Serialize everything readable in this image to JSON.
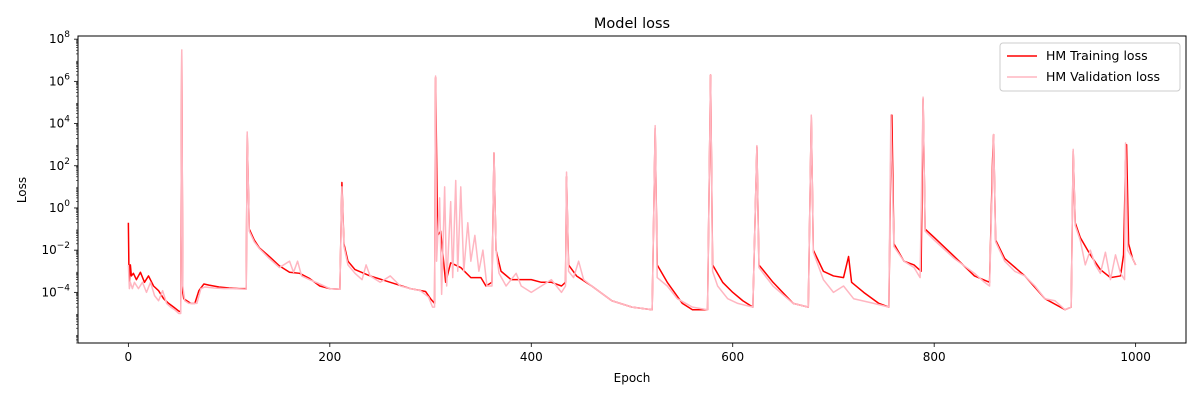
{
  "chart_data": {
    "type": "line",
    "title": "Model loss",
    "xlabel": "Epoch",
    "ylabel": "Loss",
    "xlim": [
      -50,
      1050
    ],
    "ylim_log10": [
      -6.4,
      8.15
    ],
    "yscale": "log",
    "x_ticks": [
      0,
      200,
      400,
      600,
      800,
      1000
    ],
    "y_ticks": [
      {
        "exp": -4,
        "label": "10",
        "sup": "−4"
      },
      {
        "exp": -2,
        "label": "10",
        "sup": "−2"
      },
      {
        "exp": 0,
        "label": "10",
        "sup": "0"
      },
      {
        "exp": 2,
        "label": "10",
        "sup": "2"
      },
      {
        "exp": 4,
        "label": "10",
        "sup": "4"
      },
      {
        "exp": 6,
        "label": "10",
        "sup": "6"
      },
      {
        "exp": 8,
        "label": "10",
        "sup": "8"
      }
    ],
    "legend_position": "upper-right",
    "series": [
      {
        "name": "HM Training loss",
        "color": "#ff0000",
        "points": [
          [
            0,
            0.2
          ],
          [
            0.5,
            0.002
          ],
          [
            1,
            0.0003
          ],
          [
            2,
            0.002
          ],
          [
            3,
            0.0006
          ],
          [
            5,
            0.0008
          ],
          [
            8,
            0.0004
          ],
          [
            12,
            0.0009
          ],
          [
            16,
            0.0003
          ],
          [
            20,
            0.0006
          ],
          [
            25,
            0.0002
          ],
          [
            30,
            0.00012
          ],
          [
            35,
            5e-05
          ],
          [
            40,
            3e-05
          ],
          [
            45,
            2e-05
          ],
          [
            50,
            1.3e-05
          ],
          [
            52,
            1.2e-05
          ],
          [
            53,
            30000000
          ],
          [
            54,
            0.0001
          ],
          [
            55,
            5e-05
          ],
          [
            58,
            4e-05
          ],
          [
            62,
            3e-05
          ],
          [
            66,
            3e-05
          ],
          [
            70,
            0.00012
          ],
          [
            75,
            0.00025
          ],
          [
            80,
            0.00022
          ],
          [
            90,
            0.00018
          ],
          [
            100,
            0.00016
          ],
          [
            110,
            0.00015
          ],
          [
            117,
            0.00015
          ],
          [
            118,
            3000
          ],
          [
            120,
            0.1
          ],
          [
            125,
            0.03
          ],
          [
            130,
            0.013
          ],
          [
            140,
            0.005
          ],
          [
            150,
            0.0018
          ],
          [
            160,
            0.0009
          ],
          [
            170,
            0.0008
          ],
          [
            180,
            0.00045
          ],
          [
            190,
            0.0002
          ],
          [
            200,
            0.00015
          ],
          [
            210,
            0.00014
          ],
          [
            212,
            16
          ],
          [
            214,
            0.02
          ],
          [
            218,
            0.003
          ],
          [
            225,
            0.0012
          ],
          [
            240,
            0.0006
          ],
          [
            260,
            0.0003
          ],
          [
            280,
            0.00015
          ],
          [
            295,
            0.00011
          ],
          [
            300,
            5e-05
          ],
          [
            304,
            3e-05
          ],
          [
            305,
            1500000
          ],
          [
            307,
            0.05
          ],
          [
            310,
            0.08
          ],
          [
            315,
            0.0003
          ],
          [
            320,
            0.0025
          ],
          [
            330,
            0.0015
          ],
          [
            340,
            0.0005
          ],
          [
            350,
            0.0005
          ],
          [
            355,
            0.0002
          ],
          [
            361,
            0.0003
          ],
          [
            363,
            400
          ],
          [
            365,
            0.01
          ],
          [
            370,
            0.001
          ],
          [
            380,
            0.0004
          ],
          [
            390,
            0.0004
          ],
          [
            400,
            0.0004
          ],
          [
            410,
            0.0003
          ],
          [
            420,
            0.0003
          ],
          [
            430,
            0.0002
          ],
          [
            434,
            0.0003
          ],
          [
            435,
            30
          ],
          [
            437,
            0.002
          ],
          [
            445,
            0.0006
          ],
          [
            460,
            0.0002
          ],
          [
            480,
            4e-05
          ],
          [
            500,
            2e-05
          ],
          [
            520,
            1.5e-05
          ],
          [
            523,
            6000
          ],
          [
            525,
            0.002
          ],
          [
            535,
            0.0003
          ],
          [
            550,
            3e-05
          ],
          [
            560,
            1.5e-05
          ],
          [
            575,
            1.5e-05
          ],
          [
            578,
            2000000
          ],
          [
            580,
            0.002
          ],
          [
            590,
            0.0003
          ],
          [
            600,
            0.0001
          ],
          [
            610,
            4e-05
          ],
          [
            620,
            2e-05
          ],
          [
            624,
            800
          ],
          [
            626,
            0.002
          ],
          [
            640,
            0.0003
          ],
          [
            660,
            3e-05
          ],
          [
            675,
            2e-05
          ],
          [
            678,
            20000
          ],
          [
            680,
            0.01
          ],
          [
            690,
            0.001
          ],
          [
            700,
            0.0006
          ],
          [
            710,
            0.0005
          ],
          [
            715,
            0.005
          ],
          [
            718,
            0.0003
          ],
          [
            730,
            0.0001
          ],
          [
            745,
            3e-05
          ],
          [
            755,
            2e-05
          ],
          [
            757,
            500
          ],
          [
            758,
            25000
          ],
          [
            760,
            0.02
          ],
          [
            770,
            0.003
          ],
          [
            780,
            0.002
          ],
          [
            787,
            0.001
          ],
          [
            789,
            150000
          ],
          [
            791,
            0.1
          ],
          [
            800,
            0.04
          ],
          [
            820,
            0.005
          ],
          [
            840,
            0.0006
          ],
          [
            855,
            0.0003
          ],
          [
            858,
            200
          ],
          [
            859,
            3000
          ],
          [
            861,
            0.03
          ],
          [
            870,
            0.004
          ],
          [
            890,
            0.0006
          ],
          [
            910,
            5e-05
          ],
          [
            930,
            1.5e-05
          ],
          [
            936,
            2e-05
          ],
          [
            938,
            500
          ],
          [
            940,
            0.2
          ],
          [
            945,
            0.04
          ],
          [
            955,
            0.006
          ],
          [
            965,
            0.0012
          ],
          [
            975,
            0.0005
          ],
          [
            985,
            0.0006
          ],
          [
            988,
            0.006
          ],
          [
            990,
            150
          ],
          [
            991,
            1000
          ],
          [
            993,
            0.02
          ],
          [
            997,
            0.004
          ],
          [
            1000,
            0.002
          ]
        ]
      },
      {
        "name": "HM Validation loss",
        "color": "#ffb6c1",
        "points": [
          [
            0,
            0.002
          ],
          [
            1,
            0.00015
          ],
          [
            2,
            0.0003
          ],
          [
            4,
            0.00015
          ],
          [
            6,
            0.0003
          ],
          [
            10,
            0.00015
          ],
          [
            14,
            0.0003
          ],
          [
            18,
            0.0001
          ],
          [
            22,
            0.0003
          ],
          [
            26,
            7e-05
          ],
          [
            30,
            4e-05
          ],
          [
            34,
            0.00012
          ],
          [
            38,
            3e-05
          ],
          [
            42,
            2e-05
          ],
          [
            46,
            1.5e-05
          ],
          [
            50,
            1e-05
          ],
          [
            52,
            1e-05
          ],
          [
            53,
            30000000
          ],
          [
            54,
            0.0002
          ],
          [
            56,
            4e-05
          ],
          [
            60,
            3e-05
          ],
          [
            64,
            3e-05
          ],
          [
            68,
            3e-05
          ],
          [
            72,
            0.00015
          ],
          [
            76,
            0.00018
          ],
          [
            85,
            0.00016
          ],
          [
            95,
            0.00015
          ],
          [
            105,
            0.00015
          ],
          [
            117,
            0.00014
          ],
          [
            118,
            4000
          ],
          [
            120,
            0.08
          ],
          [
            125,
            0.025
          ],
          [
            130,
            0.012
          ],
          [
            140,
            0.004
          ],
          [
            150,
            0.0015
          ],
          [
            160,
            0.003
          ],
          [
            164,
            0.0009
          ],
          [
            168,
            0.003
          ],
          [
            172,
            0.0006
          ],
          [
            180,
            0.0004
          ],
          [
            190,
            0.00025
          ],
          [
            200,
            0.00015
          ],
          [
            210,
            0.00014
          ],
          [
            212,
            10
          ],
          [
            214,
            0.015
          ],
          [
            218,
            0.002
          ],
          [
            225,
            0.0008
          ],
          [
            232,
            0.0004
          ],
          [
            236,
            0.002
          ],
          [
            240,
            0.0006
          ],
          [
            250,
            0.0003
          ],
          [
            260,
            0.0006
          ],
          [
            270,
            0.0002
          ],
          [
            280,
            0.00015
          ],
          [
            290,
            0.00012
          ],
          [
            298,
            6e-05
          ],
          [
            302,
            2e-05
          ],
          [
            304,
            2e-05
          ],
          [
            305,
            1800000
          ],
          [
            306,
            0.003
          ],
          [
            309,
            3
          ],
          [
            311,
            8e-05
          ],
          [
            314,
            10
          ],
          [
            316,
            0.0002
          ],
          [
            320,
            2
          ],
          [
            322,
            0.0005
          ],
          [
            325,
            20
          ],
          [
            327,
            0.001
          ],
          [
            330,
            10
          ],
          [
            333,
            0.001
          ],
          [
            337,
            0.2
          ],
          [
            340,
            0.003
          ],
          [
            344,
            0.05
          ],
          [
            348,
            0.001
          ],
          [
            352,
            0.01
          ],
          [
            356,
            0.0002
          ],
          [
            361,
            0.0002
          ],
          [
            363,
            400
          ],
          [
            365,
            0.01
          ],
          [
            368,
            0.0008
          ],
          [
            375,
            0.0002
          ],
          [
            385,
            0.0008
          ],
          [
            390,
            0.0002
          ],
          [
            400,
            0.0001
          ],
          [
            410,
            0.0002
          ],
          [
            420,
            0.0004
          ],
          [
            430,
            0.0001
          ],
          [
            434,
            0.0002
          ],
          [
            435,
            50
          ],
          [
            437,
            0.001
          ],
          [
            442,
            0.0005
          ],
          [
            447,
            0.003
          ],
          [
            452,
            0.0004
          ],
          [
            460,
            0.0002
          ],
          [
            480,
            4e-05
          ],
          [
            500,
            2e-05
          ],
          [
            520,
            1.5e-05
          ],
          [
            523,
            8000
          ],
          [
            525,
            0.0005
          ],
          [
            535,
            0.0002
          ],
          [
            545,
            5e-05
          ],
          [
            560,
            2e-05
          ],
          [
            575,
            1.5e-05
          ],
          [
            578,
            2000000
          ],
          [
            580,
            0.001
          ],
          [
            585,
            0.0002
          ],
          [
            595,
            5e-05
          ],
          [
            605,
            3e-05
          ],
          [
            620,
            2e-05
          ],
          [
            624,
            900
          ],
          [
            626,
            0.0015
          ],
          [
            640,
            0.0002
          ],
          [
            660,
            3e-05
          ],
          [
            675,
            2e-05
          ],
          [
            678,
            25000
          ],
          [
            680,
            0.008
          ],
          [
            690,
            0.0004
          ],
          [
            700,
            0.0001
          ],
          [
            710,
            0.0002
          ],
          [
            720,
            5e-05
          ],
          [
            740,
            3e-05
          ],
          [
            755,
            2e-05
          ],
          [
            757,
            25000
          ],
          [
            760,
            0.015
          ],
          [
            770,
            0.003
          ],
          [
            780,
            0.0015
          ],
          [
            786,
            0.0005
          ],
          [
            789,
            180000
          ],
          [
            791,
            0.08
          ],
          [
            800,
            0.03
          ],
          [
            820,
            0.004
          ],
          [
            840,
            0.0008
          ],
          [
            850,
            0.0003
          ],
          [
            855,
            0.0002
          ],
          [
            859,
            3000
          ],
          [
            861,
            0.025
          ],
          [
            870,
            0.003
          ],
          [
            880,
            0.001
          ],
          [
            890,
            0.0006
          ],
          [
            900,
            0.0002
          ],
          [
            910,
            5e-05
          ],
          [
            920,
            4e-05
          ],
          [
            930,
            1.5e-05
          ],
          [
            936,
            2e-05
          ],
          [
            938,
            600
          ],
          [
            940,
            0.15
          ],
          [
            945,
            0.03
          ],
          [
            950,
            0.002
          ],
          [
            955,
            0.01
          ],
          [
            960,
            0.002
          ],
          [
            965,
            0.0008
          ],
          [
            970,
            0.008
          ],
          [
            975,
            0.0004
          ],
          [
            980,
            0.006
          ],
          [
            985,
            0.0008
          ],
          [
            989,
            0.0004
          ],
          [
            990,
            1200
          ],
          [
            992,
            0.01
          ],
          [
            997,
            0.004
          ],
          [
            1000,
            0.002
          ]
        ]
      }
    ]
  }
}
